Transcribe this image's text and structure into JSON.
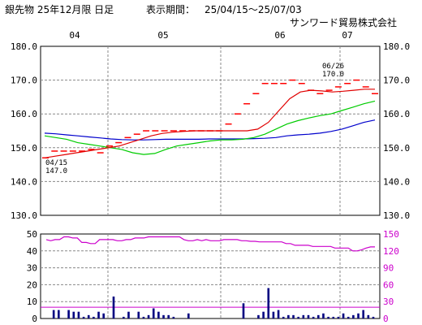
{
  "header": {
    "title": "銀先物 25年12月限 日足",
    "period_label": "表示期間：",
    "period": "25/04/15〜25/07/03",
    "company": "サンワード貿易株式会社"
  },
  "colors": {
    "price_step": "#ff0000",
    "ma_short": "#e00000",
    "ma_mid": "#00cc00",
    "ma_long": "#0000cc",
    "volume_bar": "#000080",
    "ratio_line": "#cc00cc",
    "grid": "#888888"
  },
  "chart_data": [
    {
      "type": "line",
      "x_labels": [
        "04",
        "05",
        "06",
        "07"
      ],
      "ylim": [
        130,
        180
      ],
      "y_ticks": [
        "130.0",
        "140.0",
        "150.0",
        "160.0",
        "170.0",
        "180.0"
      ],
      "annotations": [
        {
          "date_label": "04/15",
          "value_label": "147.0"
        },
        {
          "date_label": "06/26",
          "value_label": "170.0"
        }
      ],
      "series": [
        {
          "key": "price",
          "values": [
            147,
            149,
            149,
            149,
            149,
            149.5,
            148.5,
            150.5,
            151.5,
            153,
            154,
            155,
            155,
            155,
            155,
            155,
            155,
            155,
            155,
            155,
            157,
            160,
            163,
            166,
            169,
            169,
            169,
            170,
            169,
            167,
            166,
            167,
            168,
            169,
            170,
            168,
            166
          ]
        },
        {
          "key": "ma_short",
          "values": [
            147,
            147.5,
            148,
            148.5,
            149,
            149.5,
            150,
            150.5,
            151.5,
            152.5,
            153.5,
            154.2,
            154.6,
            154.8,
            155,
            155,
            155,
            155,
            155,
            155,
            155.5,
            157.5,
            161,
            164.5,
            166.5,
            167,
            166.8,
            166.5,
            166.7,
            167,
            167.3,
            167.3
          ]
        },
        {
          "key": "ma_mid",
          "values": [
            153.5,
            153,
            152.5,
            151.5,
            151,
            150.5,
            150,
            149.5,
            148.5,
            148,
            148.3,
            149.5,
            150.5,
            151,
            151.5,
            152,
            152.3,
            152.3,
            152.5,
            153,
            154,
            155.5,
            157,
            158,
            158.8,
            159.5,
            160,
            161,
            162,
            163,
            163.8
          ]
        },
        {
          "key": "ma_long",
          "values": [
            154.3,
            154.1,
            153.8,
            153.5,
            153.2,
            152.9,
            152.6,
            152.4,
            152.3,
            152.3,
            152.4,
            152.5,
            152.5,
            152.5,
            152.5,
            152.6,
            152.6,
            152.6,
            152.6,
            152.7,
            152.8,
            153,
            153.5,
            153.8,
            154,
            154.3,
            154.8,
            155.5,
            156.5,
            157.5,
            158.2
          ]
        }
      ]
    },
    {
      "type": "bar",
      "ylim_left": [
        0,
        50
      ],
      "y_ticks_left": [
        "0",
        "10",
        "20",
        "30",
        "40",
        "50"
      ],
      "ylim_right": [
        0,
        150
      ],
      "y_ticks_right": [
        "0",
        "30",
        "60",
        "90",
        "120",
        "150"
      ],
      "reference_line_right": 20,
      "volume": [
        0,
        5,
        5,
        0,
        5,
        4,
        4,
        1,
        2,
        1,
        4,
        3,
        0,
        13,
        0,
        1,
        4,
        0,
        4,
        1,
        2,
        6,
        4,
        2,
        2,
        1,
        0,
        0,
        3,
        0,
        0,
        0,
        0,
        0,
        0,
        0,
        0,
        0,
        0,
        9,
        0,
        0,
        2,
        4,
        18,
        4,
        5,
        1,
        2,
        2,
        1,
        2,
        2,
        1,
        2,
        3,
        1,
        1,
        1,
        3,
        1,
        2,
        3,
        5,
        2,
        1
      ],
      "ratio": [
        140,
        138,
        140,
        140,
        145,
        145,
        143,
        143,
        135,
        135,
        133,
        133,
        140,
        140,
        140,
        140,
        138,
        138,
        140,
        140,
        143,
        143,
        143,
        145,
        145,
        145,
        145,
        145,
        145,
        145,
        145,
        140,
        138,
        138,
        140,
        138,
        140,
        138,
        138,
        138,
        140,
        140,
        140,
        140,
        138,
        138,
        137,
        137,
        136,
        136,
        136,
        136,
        136,
        136,
        133,
        133,
        130,
        130,
        130,
        130,
        128,
        128,
        128,
        128,
        128,
        125,
        125,
        125,
        125,
        120,
        120,
        122,
        125,
        127,
        127
      ]
    }
  ]
}
